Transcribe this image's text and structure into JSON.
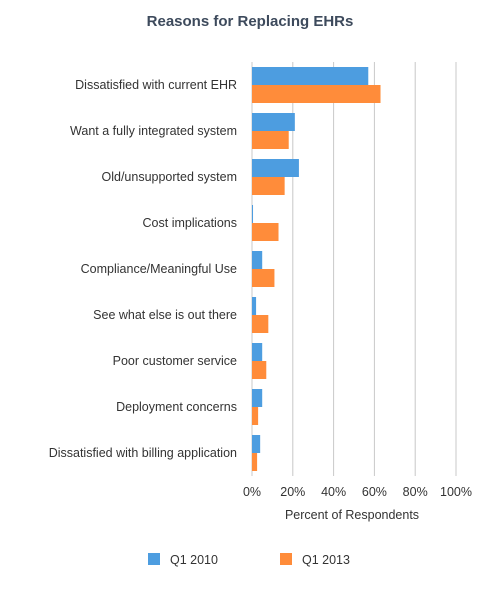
{
  "chart_data": {
    "type": "bar",
    "orientation": "horizontal",
    "title": "Reasons for Replacing EHRs",
    "xlabel": "Percent of Respondents",
    "ylabel": "",
    "xlim": [
      0,
      100
    ],
    "ticks": [
      "0%",
      "20%",
      "40%",
      "60%",
      "80%",
      "100%"
    ],
    "tick_values": [
      0,
      20,
      40,
      60,
      80,
      100
    ],
    "grid": true,
    "legend_position": "bottom",
    "categories": [
      "Dissatisfied with current EHR",
      "Want a fully integrated system",
      "Old/unsupported system",
      "Cost implications",
      "Compliance/Meaningful Use",
      "See what else is out there",
      "Poor customer service",
      "Deployment concerns",
      "Dissatisfied with billing application"
    ],
    "series": [
      {
        "name": "Q1 2010",
        "color": "#4d9de0",
        "values": [
          57,
          21,
          23,
          0.5,
          5,
          2,
          5,
          5,
          4
        ]
      },
      {
        "name": "Q1 2013",
        "color": "#ff8c3a",
        "values": [
          63,
          18,
          16,
          13,
          11,
          8,
          7,
          3,
          2.5
        ]
      }
    ]
  }
}
